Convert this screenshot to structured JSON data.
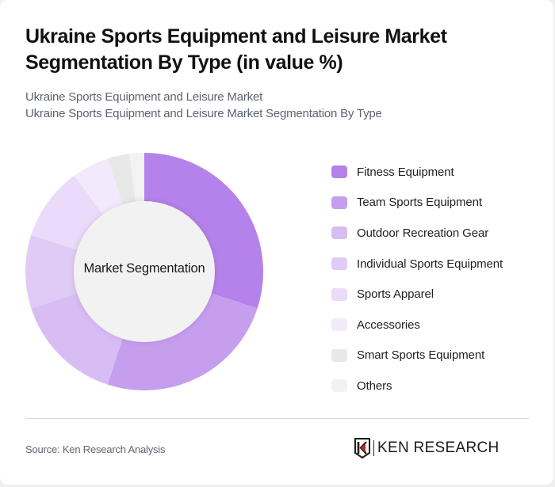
{
  "header": {
    "title": "Ukraine Sports Equipment and Leisure Market Segmentation By Type (in value %)",
    "subtitle_line1": "Ukraine Sports Equipment and Leisure Market",
    "subtitle_line2": "Ukraine Sports Equipment and Leisure Market Segmentation By Type"
  },
  "chart": {
    "center_label": "Market Segmentation"
  },
  "legend": {
    "items": [
      {
        "label": "Fitness Equipment",
        "color": "#b482ea"
      },
      {
        "label": "Team Sports Equipment",
        "color": "#c69eee"
      },
      {
        "label": "Outdoor Recreation Gear",
        "color": "#d8bdf5"
      },
      {
        "label": "Individual Sports Equipment",
        "color": "#e0cbf6"
      },
      {
        "label": "Sports Apparel",
        "color": "#e9dbf9"
      },
      {
        "label": "Accessories",
        "color": "#f2eafc"
      },
      {
        "label": "Smart Sports Equipment",
        "color": "#e8e8e8"
      },
      {
        "label": "Others",
        "color": "#f2f2f2"
      }
    ]
  },
  "footer": {
    "source": "Source: Ken Research Analysis",
    "logo_text": "KEN RESEARCH"
  },
  "chart_data": {
    "type": "pie",
    "variant": "donut",
    "title": "Ukraine Sports Equipment and Leisure Market Segmentation By Type (in value %)",
    "subtitle": "Ukraine Sports Equipment and Leisure Market Segmentation By Type",
    "center_label": "Market Segmentation",
    "categories": [
      "Fitness Equipment",
      "Team Sports Equipment",
      "Outdoor Recreation Gear",
      "Individual Sports Equipment",
      "Sports Apparel",
      "Accessories",
      "Smart Sports Equipment",
      "Others"
    ],
    "values": [
      30,
      25,
      15,
      10,
      10,
      5,
      3,
      2
    ],
    "unit": "%",
    "colors": [
      "#b482ea",
      "#c69eee",
      "#d8bdf5",
      "#e0cbf6",
      "#e9dbf9",
      "#f2eafc",
      "#e8e8e8",
      "#f2f2f2"
    ],
    "start_angle": "12 o'clock, clockwise",
    "legend_position": "right",
    "data_labels": false
  }
}
